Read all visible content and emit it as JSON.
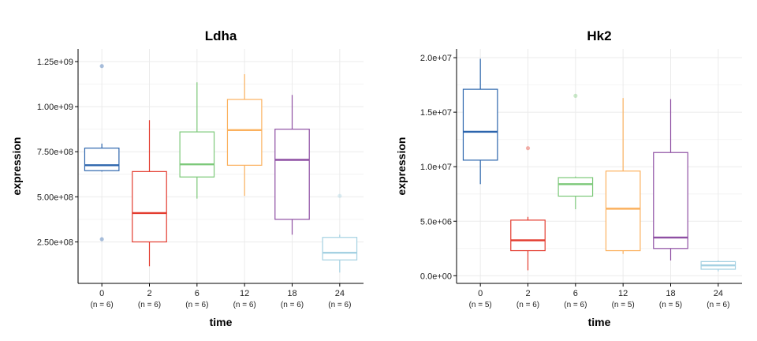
{
  "chart_data": [
    {
      "type": "box",
      "title": "Ldha",
      "xlabel": "time",
      "ylabel": "expression",
      "categories": [
        "0",
        "2",
        "6",
        "12",
        "18",
        "24"
      ],
      "n_labels": [
        "(n = 6)",
        "(n = 6)",
        "(n = 6)",
        "(n = 6)",
        "(n = 6)",
        "(n = 6)"
      ],
      "ylim": [
        20000000,
        1320000000
      ],
      "yticks": [
        250000000,
        500000000,
        750000000,
        1000000000,
        1250000000
      ],
      "ytick_labels": [
        "2.50e+08",
        "5.00e+08",
        "7.50e+08",
        "1.00e+09",
        "1.25e+09"
      ],
      "grid": true,
      "legend": "none",
      "boxes": [
        {
          "category": "0",
          "color": "#2c65ad",
          "min": 640000000,
          "q1": 645000000,
          "median": 675000000,
          "q3": 770000000,
          "max": 795000000,
          "outliers": [
            1225000000,
            265000000
          ]
        },
        {
          "category": "2",
          "color": "#e33b2e",
          "min": 115000000,
          "q1": 250000000,
          "median": 410000000,
          "q3": 640000000,
          "max": 925000000,
          "outliers": []
        },
        {
          "category": "6",
          "color": "#7dc97a",
          "min": 490000000,
          "q1": 610000000,
          "median": 680000000,
          "q3": 860000000,
          "max": 1135000000,
          "outliers": []
        },
        {
          "category": "12",
          "color": "#fbb15e",
          "min": 505000000,
          "q1": 675000000,
          "median": 870000000,
          "q3": 1040000000,
          "max": 1180000000,
          "outliers": []
        },
        {
          "category": "18",
          "color": "#8e4fa3",
          "min": 290000000,
          "q1": 375000000,
          "median": 705000000,
          "q3": 875000000,
          "max": 1065000000,
          "outliers": []
        },
        {
          "category": "24",
          "color": "#a5d1e2",
          "min": 80000000,
          "q1": 150000000,
          "median": 190000000,
          "q3": 275000000,
          "max": 290000000,
          "outliers": [
            505000000
          ]
        }
      ]
    },
    {
      "type": "box",
      "title": "Hk2",
      "xlabel": "time",
      "ylabel": "expression",
      "categories": [
        "0",
        "2",
        "6",
        "12",
        "18",
        "24"
      ],
      "n_labels": [
        "(n = 5)",
        "(n = 6)",
        "(n = 6)",
        "(n = 5)",
        "(n = 5)",
        "(n = 6)"
      ],
      "ylim": [
        -700000,
        20800000
      ],
      "yticks": [
        0,
        5000000,
        10000000,
        15000000,
        20000000
      ],
      "ytick_labels": [
        "0.0e+00",
        "5.0e+06",
        "1.0e+07",
        "1.5e+07",
        "2.0e+07"
      ],
      "grid": true,
      "legend": "none",
      "boxes": [
        {
          "category": "0",
          "color": "#2c65ad",
          "min": 8400000,
          "q1": 10600000,
          "median": 13200000,
          "q3": 17100000,
          "max": 19900000,
          "outliers": []
        },
        {
          "category": "2",
          "color": "#e33b2e",
          "min": 500000,
          "q1": 2300000,
          "median": 3250000,
          "q3": 5100000,
          "max": 5400000,
          "outliers": [
            11700000
          ]
        },
        {
          "category": "6",
          "color": "#7dc97a",
          "min": 6100000,
          "q1": 7300000,
          "median": 8400000,
          "q3": 9000000,
          "max": 9100000,
          "outliers": [
            16500000
          ]
        },
        {
          "category": "12",
          "color": "#fbb15e",
          "min": 2000000,
          "q1": 2300000,
          "median": 6150000,
          "q3": 9600000,
          "max": 16300000,
          "outliers": []
        },
        {
          "category": "18",
          "color": "#8e4fa3",
          "min": 1400000,
          "q1": 2500000,
          "median": 3500000,
          "q3": 11300000,
          "max": 16200000,
          "outliers": []
        },
        {
          "category": "24",
          "color": "#a5d1e2",
          "min": 400000,
          "q1": 600000,
          "median": 950000,
          "q3": 1300000,
          "max": 1400000,
          "outliers": []
        }
      ]
    }
  ]
}
